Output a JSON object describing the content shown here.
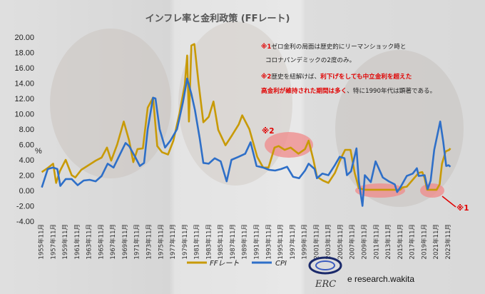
{
  "title": "インフレ率と金利政策 (FFレート)",
  "colors": {
    "ff_rate": "#c89a06",
    "cpi": "#2e6fc8",
    "highlight": "#f08a8a",
    "note_red": "#e00000"
  },
  "annotations": {
    "note1_mark": "※1",
    "note1_line1": "ゼロ金利の局面は歴史的にリーマンショック時と",
    "note1_line2": "コロナパンデミックの2度のみ。",
    "note2_mark": "※2",
    "note2_line1_black": "歴史を紐解けば、",
    "note2_line1_red": "利下げをしても中立金利を超えた",
    "note2_line2_red": "高金利が維持された期間は多く",
    "note2_line2_black": "、特に1990年代は顕著である。",
    "marker2_label": "※2",
    "marker1_label": "※1"
  },
  "watermark": {
    "logo_text": "ERC",
    "brand_text": "e research.wakita"
  },
  "chart_data": {
    "type": "line",
    "title": "インフレ率と金利政策 (FFレート)",
    "ylabel": "%",
    "ylim": [
      -4.0,
      20.0
    ],
    "yticks": [
      "-4.00",
      "-2.00",
      "0.00",
      "2.00",
      "4.00",
      "6.00",
      "8.00",
      "10.00",
      "12.00",
      "14.00",
      "16.00",
      "18.00",
      "20.00"
    ],
    "xlim": [
      1955.83,
      2024.5
    ],
    "x_tick_labels": [
      "1955年11月",
      "1957年11月",
      "1959年11月",
      "1961年11月",
      "1963年11月",
      "1965年11月",
      "1967年11月",
      "1969年11月",
      "1971年11月",
      "1973年11月",
      "1975年11月",
      "1977年11月",
      "1979年11月",
      "1981年11月",
      "1983年11月",
      "1985年11月",
      "1987年11月",
      "1989年11月",
      "1991年11月",
      "1993年11月",
      "1995年11月",
      "1997年11月",
      "1999年11月",
      "2001年11月",
      "2003年11月",
      "2005年11月",
      "2007年11月",
      "2009年11月",
      "2011年11月",
      "2013年11月",
      "2015年11月",
      "2017年11月",
      "2019年11月",
      "2021年11月",
      "2023年11月"
    ],
    "legend": [
      "FFレート",
      "CPI"
    ],
    "legend_position": "bottom",
    "grid": false,
    "series": [
      {
        "name": "FFレート",
        "points": [
          [
            1955.9,
            2.4
          ],
          [
            1957.0,
            3.0
          ],
          [
            1957.8,
            3.5
          ],
          [
            1958.3,
            1.0
          ],
          [
            1958.9,
            2.5
          ],
          [
            1959.9,
            4.0
          ],
          [
            1960.9,
            2.0
          ],
          [
            1961.5,
            1.7
          ],
          [
            1962.5,
            2.7
          ],
          [
            1963.9,
            3.4
          ],
          [
            1964.9,
            3.9
          ],
          [
            1965.9,
            4.3
          ],
          [
            1966.8,
            5.6
          ],
          [
            1967.5,
            3.9
          ],
          [
            1968.5,
            6.0
          ],
          [
            1969.6,
            9.0
          ],
          [
            1970.5,
            6.5
          ],
          [
            1971.2,
            3.7
          ],
          [
            1971.9,
            5.4
          ],
          [
            1972.8,
            5.5
          ],
          [
            1973.6,
            10.8
          ],
          [
            1974.5,
            12.1
          ],
          [
            1975.2,
            5.8
          ],
          [
            1976.0,
            5.0
          ],
          [
            1977.0,
            4.7
          ],
          [
            1977.9,
            6.5
          ],
          [
            1978.9,
            10.0
          ],
          [
            1979.8,
            13.8
          ],
          [
            1980.2,
            17.6
          ],
          [
            1980.5,
            9.0
          ],
          [
            1980.9,
            18.9
          ],
          [
            1981.4,
            19.1
          ],
          [
            1982.1,
            14.0
          ],
          [
            1982.9,
            8.9
          ],
          [
            1983.8,
            9.6
          ],
          [
            1984.6,
            11.6
          ],
          [
            1985.4,
            7.9
          ],
          [
            1986.6,
            5.9
          ],
          [
            1987.7,
            7.2
          ],
          [
            1988.8,
            8.6
          ],
          [
            1989.4,
            9.8
          ],
          [
            1990.6,
            8.0
          ],
          [
            1991.9,
            4.4
          ],
          [
            1992.9,
            3.0
          ],
          [
            1993.8,
            3.0
          ],
          [
            1994.8,
            5.6
          ],
          [
            1995.5,
            5.8
          ],
          [
            1996.5,
            5.3
          ],
          [
            1997.5,
            5.6
          ],
          [
            1998.8,
            4.8
          ],
          [
            1999.9,
            5.4
          ],
          [
            2000.5,
            6.5
          ],
          [
            2001.3,
            4.0
          ],
          [
            2001.9,
            1.8
          ],
          [
            2002.9,
            1.3
          ],
          [
            2003.8,
            1.0
          ],
          [
            2004.9,
            2.3
          ],
          [
            2005.9,
            4.2
          ],
          [
            2006.6,
            5.3
          ],
          [
            2007.5,
            5.3
          ],
          [
            2008.2,
            2.3
          ],
          [
            2008.9,
            0.3
          ],
          [
            2009.9,
            0.1
          ],
          [
            2011.9,
            0.1
          ],
          [
            2013.9,
            0.1
          ],
          [
            2015.8,
            0.1
          ],
          [
            2016.2,
            0.4
          ],
          [
            2016.9,
            0.5
          ],
          [
            2017.9,
            1.4
          ],
          [
            2018.9,
            2.3
          ],
          [
            2019.5,
            2.4
          ],
          [
            2019.9,
            1.6
          ],
          [
            2020.3,
            0.1
          ],
          [
            2021.9,
            0.1
          ],
          [
            2022.4,
            0.8
          ],
          [
            2022.8,
            3.5
          ],
          [
            2023.4,
            5.1
          ],
          [
            2024.0,
            5.3
          ],
          [
            2024.2,
            5.5
          ]
        ]
      },
      {
        "name": "CPI",
        "points": [
          [
            1955.9,
            0.4
          ],
          [
            1956.9,
            2.8
          ],
          [
            1957.8,
            3.0
          ],
          [
            1958.5,
            2.8
          ],
          [
            1959.0,
            0.6
          ],
          [
            1959.9,
            1.5
          ],
          [
            1960.9,
            1.5
          ],
          [
            1961.9,
            0.7
          ],
          [
            1962.9,
            1.3
          ],
          [
            1963.9,
            1.4
          ],
          [
            1964.9,
            1.2
          ],
          [
            1965.9,
            1.9
          ],
          [
            1966.9,
            3.5
          ],
          [
            1967.9,
            3.0
          ],
          [
            1968.9,
            4.6
          ],
          [
            1969.9,
            6.2
          ],
          [
            1970.5,
            5.8
          ],
          [
            1971.5,
            4.4
          ],
          [
            1972.3,
            3.2
          ],
          [
            1973.0,
            3.6
          ],
          [
            1973.6,
            8.0
          ],
          [
            1974.5,
            12.1
          ],
          [
            1974.9,
            12.0
          ],
          [
            1975.6,
            8.0
          ],
          [
            1976.5,
            5.6
          ],
          [
            1977.4,
            6.5
          ],
          [
            1978.5,
            8.0
          ],
          [
            1979.5,
            11.5
          ],
          [
            1980.2,
            14.6
          ],
          [
            1980.9,
            12.6
          ],
          [
            1981.5,
            10.5
          ],
          [
            1982.3,
            6.8
          ],
          [
            1982.9,
            3.6
          ],
          [
            1983.8,
            3.5
          ],
          [
            1984.8,
            4.2
          ],
          [
            1985.8,
            3.8
          ],
          [
            1986.8,
            1.2
          ],
          [
            1987.6,
            4.0
          ],
          [
            1988.8,
            4.4
          ],
          [
            1989.9,
            4.8
          ],
          [
            1990.8,
            6.3
          ],
          [
            1991.8,
            3.2
          ],
          [
            1992.9,
            3.0
          ],
          [
            1993.9,
            2.7
          ],
          [
            1994.9,
            2.6
          ],
          [
            1995.9,
            2.8
          ],
          [
            1996.9,
            3.1
          ],
          [
            1997.9,
            1.8
          ],
          [
            1998.9,
            1.6
          ],
          [
            1999.9,
            2.6
          ],
          [
            2000.5,
            3.5
          ],
          [
            2001.5,
            2.8
          ],
          [
            2001.9,
            1.6
          ],
          [
            2002.8,
            2.2
          ],
          [
            2003.8,
            2.0
          ],
          [
            2004.8,
            3.2
          ],
          [
            2005.7,
            4.4
          ],
          [
            2006.5,
            4.2
          ],
          [
            2006.9,
            2.0
          ],
          [
            2007.6,
            2.5
          ],
          [
            2008.5,
            5.5
          ],
          [
            2008.9,
            1.2
          ],
          [
            2009.5,
            -2.0
          ],
          [
            2009.9,
            2.0
          ],
          [
            2010.9,
            1.1
          ],
          [
            2011.7,
            3.8
          ],
          [
            2012.9,
            1.7
          ],
          [
            2013.9,
            1.2
          ],
          [
            2014.9,
            0.8
          ],
          [
            2015.3,
            -0.2
          ],
          [
            2015.9,
            0.5
          ],
          [
            2016.9,
            1.9
          ],
          [
            2017.9,
            2.2
          ],
          [
            2018.6,
            2.9
          ],
          [
            2018.9,
            1.9
          ],
          [
            2019.9,
            2.0
          ],
          [
            2020.4,
            0.2
          ],
          [
            2020.9,
            1.3
          ],
          [
            2021.5,
            5.3
          ],
          [
            2022.5,
            9.0
          ],
          [
            2023.0,
            6.4
          ],
          [
            2023.5,
            3.2
          ],
          [
            2023.9,
            3.3
          ],
          [
            2024.2,
            3.1
          ]
        ]
      }
    ]
  }
}
